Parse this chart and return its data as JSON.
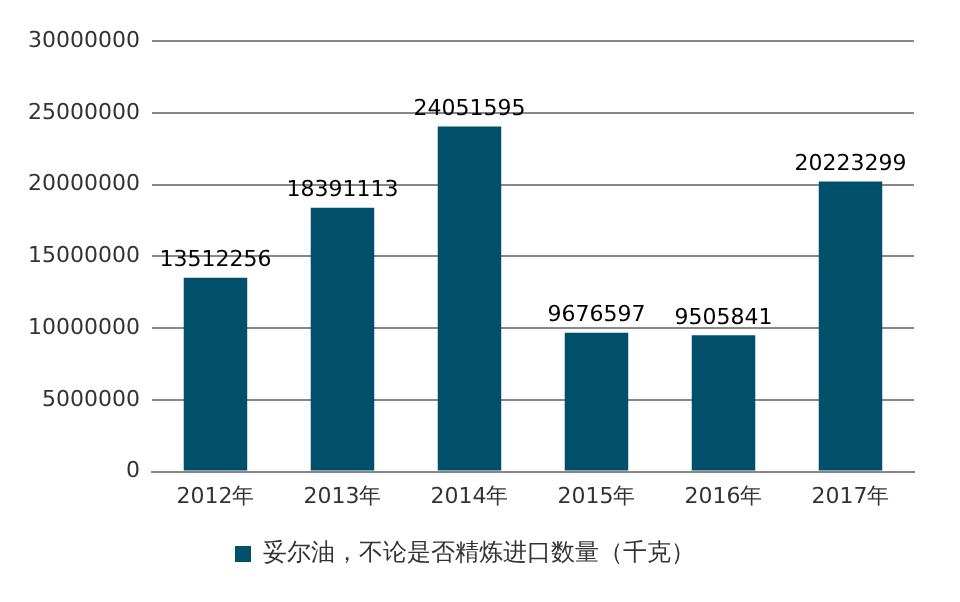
{
  "chart_data": {
    "type": "bar",
    "categories": [
      "2012年",
      "2013年",
      "2014年",
      "2015年",
      "2016年",
      "2017年"
    ],
    "series": [
      {
        "name": "妥尔油，不论是否精炼进口数量（千克）",
        "color": "#00506b",
        "values": [
          13512256,
          18391113,
          24051595,
          9676597,
          9505841,
          20223299
        ]
      }
    ],
    "ylim": [
      0,
      30000000
    ],
    "yticks": [
      0,
      5000000,
      10000000,
      15000000,
      20000000,
      25000000,
      30000000
    ],
    "grid": "y",
    "legend": "bottom",
    "data_labels": true
  }
}
